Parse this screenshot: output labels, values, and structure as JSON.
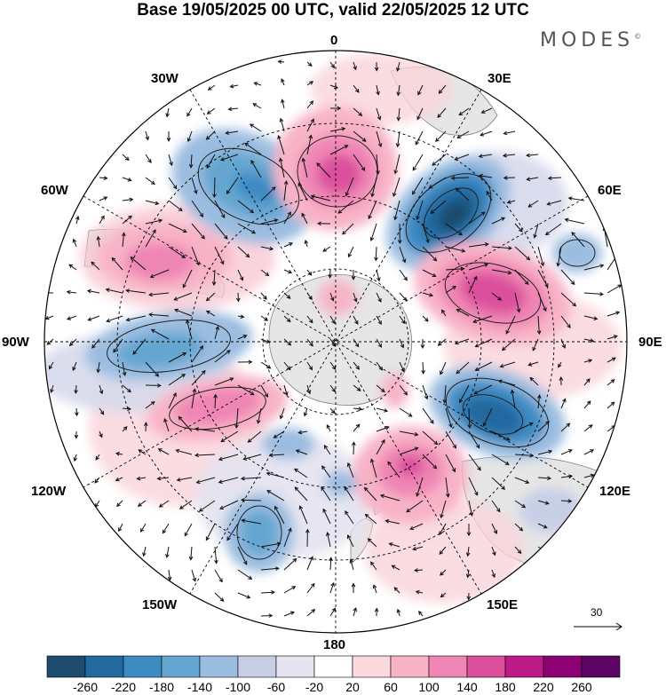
{
  "title": "Base 19/05/2025 00 UTC, valid 22/05/2025 12 UTC",
  "brand": "MODES",
  "brand_mark": "©",
  "longitudes": {
    "lon_0": "0",
    "lon_30e": "30E",
    "lon_60e": "60E",
    "lon_90e": "90E",
    "lon_120e": "120E",
    "lon_150e": "150E",
    "lon_180": "180",
    "lon_150w": "150W",
    "lon_120w": "120W",
    "lon_90w": "90W",
    "lon_60w": "60W",
    "lon_30w": "30W"
  },
  "reference_vector": "30",
  "colorbar": {
    "ticks": [
      "-260",
      "-220",
      "-180",
      "-140",
      "-100",
      "-60",
      "-20",
      "20",
      "60",
      "100",
      "140",
      "180",
      "220",
      "260"
    ],
    "colors": [
      "#1d4c6e",
      "#2269a0",
      "#3c8bc3",
      "#65a6d1",
      "#9bbde0",
      "#c7cfe7",
      "#e6e4f1",
      "#ffffff",
      "#fbd9dc",
      "#f8b3c7",
      "#ef86b3",
      "#dc4f9d",
      "#bd1a87",
      "#8e0175",
      "#5c0565"
    ]
  },
  "colors": {
    "land": "#e8e8e8",
    "coast": "#777777",
    "grid": "#000000"
  }
}
